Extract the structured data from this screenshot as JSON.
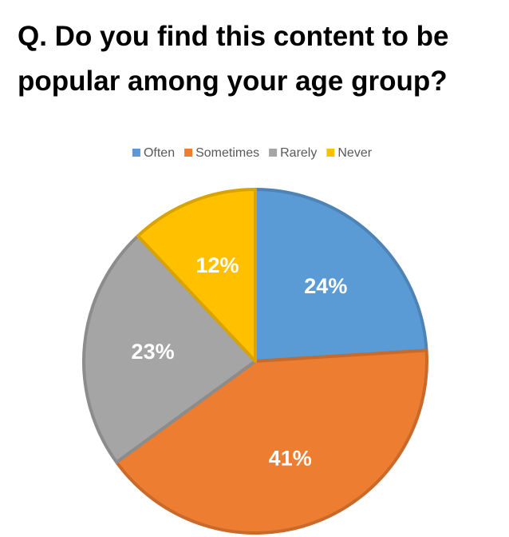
{
  "chart_data": {
    "type": "pie",
    "title": "Q. Do you find this content to be popular among your age group?",
    "categories": [
      "Often",
      "Sometimes",
      "Rarely",
      "Never"
    ],
    "values": [
      24,
      41,
      23,
      12
    ],
    "value_labels": [
      "24%",
      "41%",
      "23%",
      "12%"
    ],
    "colors": [
      "#5b9bd5",
      "#ed7d31",
      "#a5a5a5",
      "#ffc000"
    ],
    "legend": "top"
  }
}
